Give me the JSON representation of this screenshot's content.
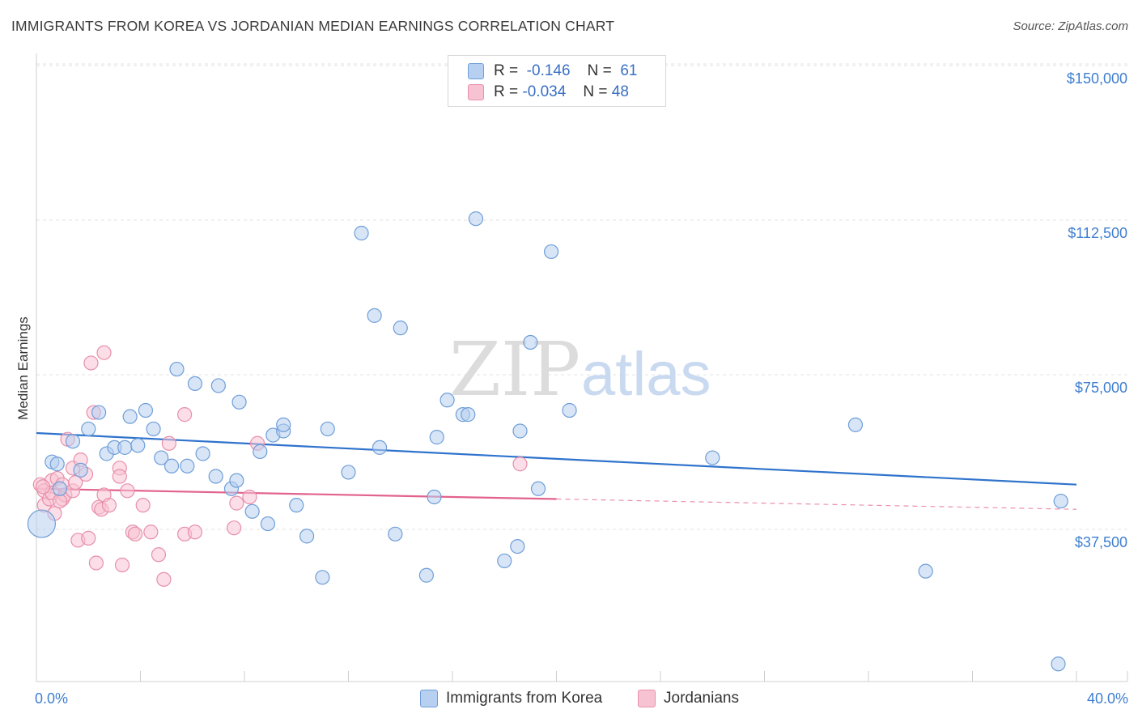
{
  "title": "IMMIGRANTS FROM KOREA VS JORDANIAN MEDIAN EARNINGS CORRELATION CHART",
  "source": "Source: ZipAtlas.com",
  "watermark": {
    "zip": "ZIP",
    "atlas": "atlas"
  },
  "colors": {
    "blue_fill": "#b7d0f1",
    "blue_stroke": "#6f9ed8",
    "blue_line": "#2f73cc",
    "pink_fill": "#f7c3d3",
    "pink_stroke": "#e88fab",
    "pink_line": "#e2628c",
    "accent_text": "#3f7fd0"
  },
  "legend": {
    "series1": {
      "r_label": "R =",
      "r_value": "-0.146",
      "n_label": "N =",
      "n_value": "61"
    },
    "series2": {
      "r_label": "R =",
      "r_value": "-0.034",
      "n_label": "N =",
      "n_value": "48"
    }
  },
  "chart_data": {
    "type": "scatter",
    "title": "IMMIGRANTS FROM KOREA VS JORDANIAN MEDIAN EARNINGS CORRELATION CHART",
    "xlabel": "",
    "ylabel": "Median Earnings",
    "xlim": [
      0,
      40
    ],
    "ylim": [
      0,
      155000
    ],
    "x_tick_labels": [
      "0.0%",
      "40.0%"
    ],
    "y_ticks": [
      37500,
      75000,
      112500,
      150000
    ],
    "y_tick_labels": [
      "$37,500",
      "$75,000",
      "$112,500",
      "$150,000"
    ],
    "grid": true,
    "series": [
      {
        "name": "Immigrants from Korea",
        "color": "blue",
        "trend": {
          "x": [
            0,
            40
          ],
          "y": [
            64000,
            51500
          ]
        },
        "points": [
          [
            0.2,
            42000
          ],
          [
            0.6,
            57000
          ],
          [
            0.8,
            56500
          ],
          [
            0.9,
            50500
          ],
          [
            1.4,
            62000
          ],
          [
            1.7,
            55000
          ],
          [
            2.0,
            65000
          ],
          [
            2.4,
            69000
          ],
          [
            2.7,
            59000
          ],
          [
            3.0,
            60500
          ],
          [
            3.4,
            60500
          ],
          [
            3.6,
            68000
          ],
          [
            3.9,
            61000
          ],
          [
            4.2,
            69500
          ],
          [
            4.5,
            65000
          ],
          [
            4.8,
            58000
          ],
          [
            5.2,
            56000
          ],
          [
            5.4,
            79500
          ],
          [
            5.8,
            56000
          ],
          [
            6.1,
            76000
          ],
          [
            6.4,
            59000
          ],
          [
            6.9,
            53500
          ],
          [
            7.0,
            75500
          ],
          [
            7.5,
            50500
          ],
          [
            7.7,
            52500
          ],
          [
            7.8,
            71500
          ],
          [
            8.3,
            45000
          ],
          [
            8.6,
            59500
          ],
          [
            8.9,
            42000
          ],
          [
            9.1,
            63500
          ],
          [
            9.5,
            64500
          ],
          [
            9.5,
            66000
          ],
          [
            10.0,
            46500
          ],
          [
            10.4,
            39000
          ],
          [
            11.0,
            29000
          ],
          [
            11.2,
            65000
          ],
          [
            12.0,
            54500
          ],
          [
            12.5,
            112500
          ],
          [
            13.0,
            92500
          ],
          [
            13.2,
            60500
          ],
          [
            13.8,
            39500
          ],
          [
            14.0,
            89500
          ],
          [
            15.0,
            29500
          ],
          [
            15.3,
            48500
          ],
          [
            15.4,
            63000
          ],
          [
            15.8,
            72000
          ],
          [
            16.4,
            68500
          ],
          [
            16.6,
            68500
          ],
          [
            16.9,
            116000
          ],
          [
            18.0,
            33000
          ],
          [
            18.5,
            36500
          ],
          [
            18.6,
            64500
          ],
          [
            19.0,
            86000
          ],
          [
            19.3,
            50500
          ],
          [
            19.8,
            108000
          ],
          [
            20.5,
            69500
          ],
          [
            26.0,
            58000
          ],
          [
            31.5,
            66000
          ],
          [
            34.2,
            30500
          ],
          [
            39.4,
            47500
          ],
          [
            39.3,
            8000
          ]
        ]
      },
      {
        "name": "Jordanians",
        "color": "pink",
        "trend": {
          "x": [
            0,
            20
          ],
          "y": [
            50500,
            48000
          ]
        },
        "trend_extension": {
          "x": [
            20,
            40
          ],
          "y": [
            48000,
            45500
          ]
        },
        "points": [
          [
            0.15,
            51500
          ],
          [
            0.3,
            50000
          ],
          [
            0.3,
            46500
          ],
          [
            0.5,
            48000
          ],
          [
            0.6,
            52500
          ],
          [
            0.7,
            44500
          ],
          [
            0.8,
            53000
          ],
          [
            1.0,
            48000
          ],
          [
            1.0,
            51500
          ],
          [
            1.1,
            49000
          ],
          [
            1.2,
            62500
          ],
          [
            1.4,
            50000
          ],
          [
            1.4,
            55500
          ],
          [
            1.5,
            52000
          ],
          [
            1.6,
            38000
          ],
          [
            1.7,
            57500
          ],
          [
            1.9,
            54000
          ],
          [
            2.0,
            38500
          ],
          [
            2.1,
            81000
          ],
          [
            2.2,
            69000
          ],
          [
            2.3,
            32500
          ],
          [
            2.4,
            46000
          ],
          [
            2.5,
            45500
          ],
          [
            2.6,
            49000
          ],
          [
            2.8,
            46500
          ],
          [
            2.6,
            83500
          ],
          [
            3.2,
            55500
          ],
          [
            3.2,
            53500
          ],
          [
            3.3,
            32000
          ],
          [
            3.5,
            50000
          ],
          [
            3.7,
            40000
          ],
          [
            3.8,
            39500
          ],
          [
            4.1,
            46500
          ],
          [
            4.4,
            40000
          ],
          [
            4.7,
            34500
          ],
          [
            4.9,
            28500
          ],
          [
            5.1,
            61500
          ],
          [
            5.7,
            39500
          ],
          [
            5.7,
            68500
          ],
          [
            6.1,
            40000
          ],
          [
            7.6,
            41000
          ],
          [
            7.7,
            47000
          ],
          [
            8.2,
            48500
          ],
          [
            8.5,
            61500
          ],
          [
            0.6,
            49500
          ],
          [
            0.25,
            51000
          ],
          [
            18.6,
            56500
          ],
          [
            0.9,
            47500
          ]
        ]
      }
    ]
  },
  "bottom_legend": {
    "series1": "Immigrants from Korea",
    "series2": "Jordanians"
  },
  "x_axis": {
    "left_label": "0.0%",
    "right_label": "40.0%"
  }
}
